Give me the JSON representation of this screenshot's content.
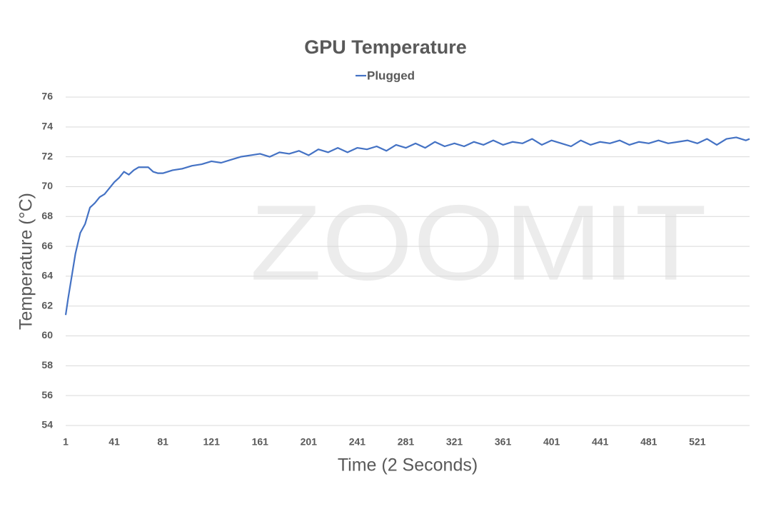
{
  "watermark": "ZOOMIT",
  "chart_data": {
    "type": "line",
    "title": "GPU Temperature",
    "x_label": "Time (2 Seconds)",
    "y_label": "Temperature (°C)",
    "x": [
      1,
      3,
      5,
      9,
      13,
      17,
      21,
      25,
      29,
      33,
      37,
      41,
      45,
      49,
      53,
      57,
      61,
      65,
      69,
      73,
      77,
      81,
      89,
      97,
      105,
      113,
      121,
      129,
      137,
      145,
      153,
      161,
      169,
      177,
      185,
      193,
      201,
      209,
      217,
      225,
      233,
      241,
      249,
      257,
      265,
      273,
      281,
      289,
      297,
      305,
      313,
      321,
      329,
      337,
      345,
      353,
      361,
      369,
      377,
      385,
      393,
      401,
      409,
      417,
      425,
      433,
      441,
      449,
      457,
      465,
      473,
      481,
      489,
      497,
      505,
      513,
      521,
      529,
      537,
      545,
      553,
      561,
      564
    ],
    "series": [
      {
        "name": "Plugged",
        "color": "#4472c4",
        "values": [
          61.4,
          62.5,
          63.5,
          65.5,
          66.9,
          67.5,
          68.6,
          68.9,
          69.3,
          69.5,
          69.9,
          70.3,
          70.6,
          71.0,
          70.8,
          71.1,
          71.3,
          71.3,
          71.3,
          71.0,
          70.9,
          70.9,
          71.1,
          71.2,
          71.4,
          71.5,
          71.7,
          71.6,
          71.8,
          72.0,
          72.1,
          72.2,
          72.0,
          72.3,
          72.2,
          72.4,
          72.1,
          72.5,
          72.3,
          72.6,
          72.3,
          72.6,
          72.5,
          72.7,
          72.4,
          72.8,
          72.6,
          72.9,
          72.6,
          73.0,
          72.7,
          72.9,
          72.7,
          73.0,
          72.8,
          73.1,
          72.8,
          73.0,
          72.9,
          73.2,
          72.8,
          73.1,
          72.9,
          72.7,
          73.1,
          72.8,
          73.0,
          72.9,
          73.1,
          72.8,
          73.0,
          72.9,
          73.1,
          72.9,
          73.0,
          73.1,
          72.9,
          73.2,
          72.8,
          73.2,
          73.3,
          73.1,
          73.2
        ]
      }
    ],
    "xlim": [
      1,
      564
    ],
    "xticks": [
      1,
      41,
      81,
      121,
      161,
      201,
      241,
      281,
      321,
      361,
      401,
      441,
      481,
      521
    ],
    "ylim": [
      54,
      76
    ],
    "yticks": [
      54,
      56,
      58,
      60,
      62,
      64,
      66,
      68,
      70,
      72,
      74,
      76
    ],
    "grid": true,
    "legend": "top"
  }
}
